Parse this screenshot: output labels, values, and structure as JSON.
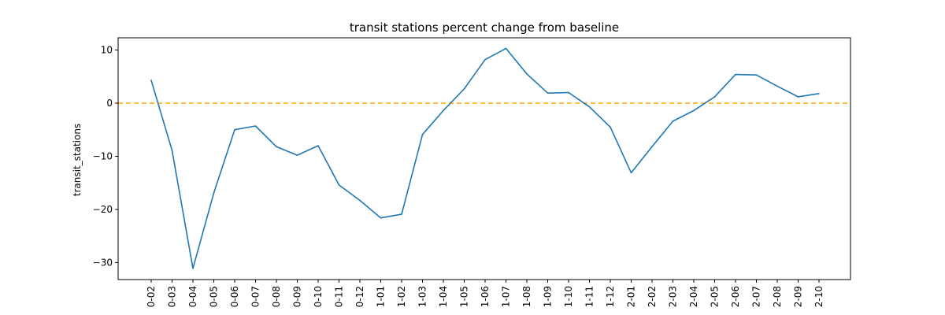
{
  "chart_data": {
    "type": "line",
    "title": "transit stations percent change from baseline",
    "xlabel": "",
    "ylabel": "transit_stations",
    "categories": [
      "0-02",
      "0-03",
      "0-04",
      "0-05",
      "0-06",
      "0-07",
      "0-08",
      "0-09",
      "0-10",
      "0-11",
      "0-12",
      "1-01",
      "1-02",
      "1-03",
      "1-04",
      "1-05",
      "1-06",
      "1-07",
      "1-08",
      "1-09",
      "1-10",
      "1-11",
      "1-12",
      "2-01",
      "2-02",
      "2-03",
      "2-04",
      "2-05",
      "2-06",
      "2-07",
      "2-08",
      "2-09",
      "2-10"
    ],
    "series": [
      {
        "values": [
          4.3,
          -8.9,
          -31.1,
          -16.9,
          -5.0,
          -4.3,
          -8.2,
          -9.8,
          -8.0,
          -15.4,
          -18.3,
          -21.6,
          -20.9,
          -5.9,
          -1.4,
          2.7,
          8.2,
          10.3,
          5.5,
          1.9,
          2.0,
          -0.7,
          -4.5,
          -13.1,
          -8.2,
          -3.4,
          -1.4,
          1.2,
          5.4,
          5.3,
          3.2,
          1.2,
          1.8
        ],
        "color": "#1f77b4"
      }
    ],
    "reference_line": {
      "y": 0,
      "color": "#ffa500",
      "style": "dashed"
    },
    "yticks": [
      10,
      0,
      -10,
      -20,
      -30
    ],
    "ylim": [
      -33.2,
      12.3
    ],
    "grid": false,
    "legend": "none"
  }
}
